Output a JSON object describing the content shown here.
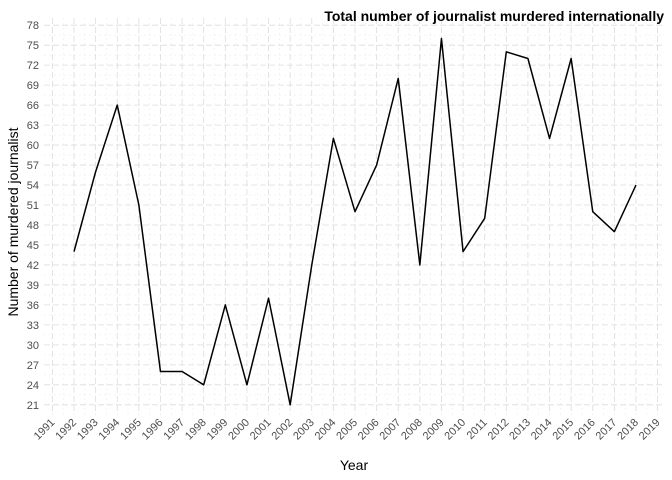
{
  "chart_data": {
    "type": "line",
    "title": "Total number of journalist murdered internationally",
    "xlabel": "Year",
    "ylabel": "Number of murdered journalist",
    "x_ticks": [
      1991,
      1992,
      1993,
      1994,
      1995,
      1996,
      1997,
      1998,
      1999,
      2000,
      2001,
      2002,
      2003,
      2004,
      2005,
      2006,
      2007,
      2008,
      2009,
      2010,
      2011,
      2012,
      2013,
      2014,
      2015,
      2016,
      2017,
      2018,
      2019
    ],
    "y_ticks": [
      21,
      24,
      27,
      30,
      33,
      36,
      39,
      42,
      45,
      48,
      51,
      54,
      57,
      60,
      63,
      66,
      69,
      72,
      75,
      78
    ],
    "xlim": [
      1991,
      2019
    ],
    "ylim": [
      21,
      78
    ],
    "grid": true,
    "x": [
      1992,
      1993,
      1994,
      1995,
      1996,
      1997,
      1998,
      1999,
      2000,
      2001,
      2002,
      2003,
      2004,
      2005,
      2006,
      2007,
      2008,
      2009,
      2010,
      2011,
      2012,
      2013,
      2014,
      2015,
      2016,
      2017,
      2018
    ],
    "values": [
      44,
      56,
      66,
      51,
      26,
      26,
      24,
      36,
      24,
      37,
      21,
      42,
      61,
      50,
      57,
      70,
      42,
      76,
      44,
      49,
      74,
      73,
      61,
      73,
      50,
      47,
      54
    ]
  }
}
